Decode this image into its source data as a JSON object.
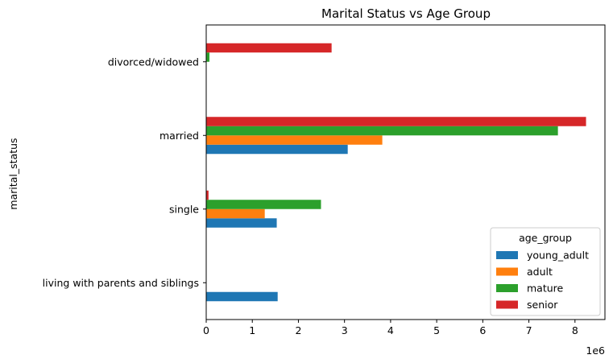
{
  "chart_data": {
    "type": "bar",
    "orientation": "horizontal",
    "title": "Marital Status vs Age Group",
    "xlabel": "",
    "ylabel": "marital_status",
    "x_scale_label": "1e6",
    "xlim": [
      0,
      8.65
    ],
    "x_ticks": [
      0,
      1,
      2,
      3,
      4,
      5,
      6,
      7,
      8
    ],
    "categories": [
      "living with parents and siblings",
      "single",
      "married",
      "divorced/widowed"
    ],
    "series": [
      {
        "name": "young_adult",
        "color": "#1f77b4",
        "values": [
          1.55,
          1.53,
          3.07,
          0.0
        ]
      },
      {
        "name": "adult",
        "color": "#ff7f0e",
        "values": [
          0.0,
          1.27,
          3.82,
          0.0
        ]
      },
      {
        "name": "mature",
        "color": "#2ca02c",
        "values": [
          0.0,
          2.49,
          7.63,
          0.07
        ]
      },
      {
        "name": "senior",
        "color": "#d62728",
        "values": [
          0.0,
          0.05,
          8.24,
          2.72
        ]
      }
    ],
    "legend": {
      "title": "age_group",
      "position": "lower-right"
    },
    "grid": false
  }
}
